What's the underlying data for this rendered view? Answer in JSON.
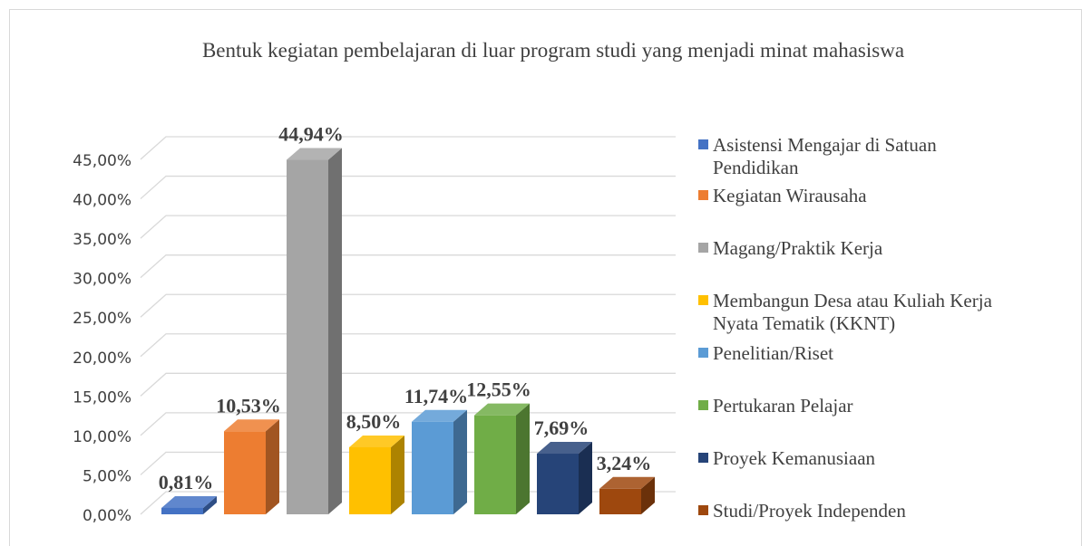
{
  "chart_data": {
    "type": "bar3d",
    "title": "Bentuk kegiatan pembelajaran di luar program studi yang menjadi minat mahasiswa",
    "categories": [
      "Asistensi Mengajar di Satuan Pendidikan",
      "Kegiatan Wirausaha",
      "Magang/Praktik Kerja",
      "Membangun Desa atau Kuliah Kerja Nyata Tematik (KKNT)",
      "Penelitian/Riset",
      "Pertukaran Pelajar",
      "Proyek Kemanusiaan",
      "Studi/Proyek Independen"
    ],
    "values": [
      0.81,
      10.53,
      44.94,
      8.5,
      11.74,
      12.55,
      7.69,
      3.24
    ],
    "value_labels": [
      "0,81%",
      "10,53%",
      "44,94%",
      "8,50%",
      "11,74%",
      "12,55%",
      "7,69%",
      "3,24%"
    ],
    "colors": [
      "#4472c4",
      "#ed7d31",
      "#a5a5a5",
      "#ffc000",
      "#5b9bd5",
      "#70ad47",
      "#264478",
      "#9e480e"
    ],
    "ylim": [
      0,
      45
    ],
    "yticks": [
      {
        "value": 0,
        "label": "0,00%"
      },
      {
        "value": 5,
        "label": "5,00%"
      },
      {
        "value": 10,
        "label": "10,00%"
      },
      {
        "value": 15,
        "label": "15,00%"
      },
      {
        "value": 20,
        "label": "20,00%"
      },
      {
        "value": 25,
        "label": "25,00%"
      },
      {
        "value": 30,
        "label": "30,00%"
      },
      {
        "value": 35,
        "label": "35,00%"
      },
      {
        "value": 40,
        "label": "40,00%"
      },
      {
        "value": 45,
        "label": "45,00%"
      }
    ],
    "grid": true,
    "legend": "right"
  }
}
